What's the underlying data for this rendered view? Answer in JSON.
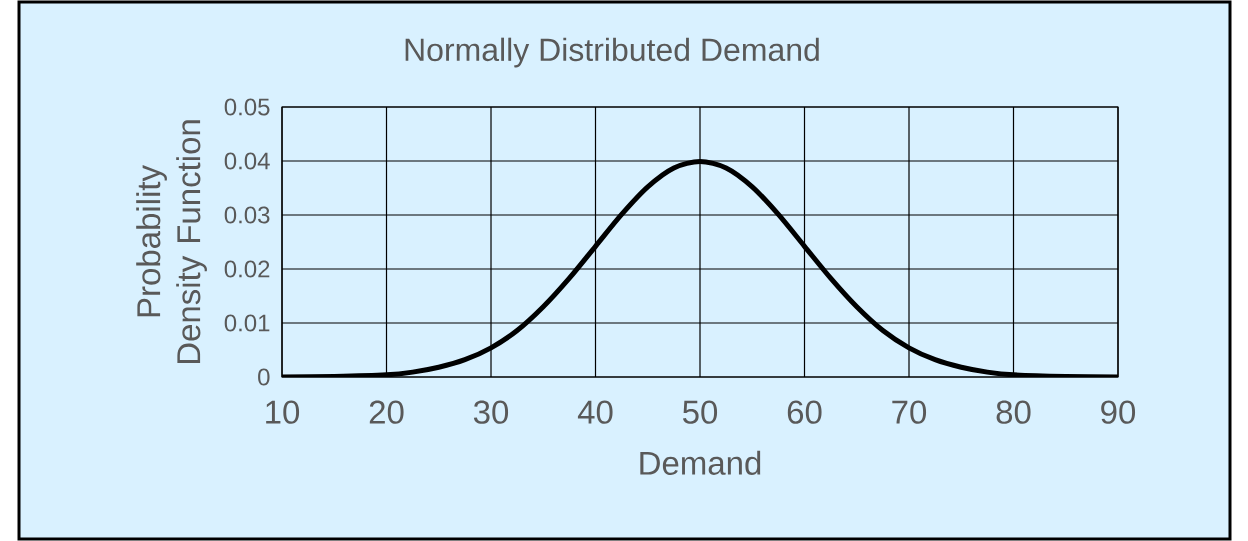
{
  "chart_data": {
    "type": "line",
    "title": "Normally Distributed Demand",
    "xlabel": "Demand",
    "ylabel": "Probability Density Function",
    "x": [
      10,
      15,
      20,
      22.5,
      25,
      27.5,
      30,
      32.5,
      35,
      37.5,
      40,
      42.5,
      45,
      47.5,
      50,
      52.5,
      55,
      57.5,
      60,
      62.5,
      65,
      67.5,
      70,
      72.5,
      75,
      77.5,
      80,
      85,
      90
    ],
    "series": [
      {
        "color": "#000000",
        "values": [
          0,
          0.0001,
          0.0004,
          0.0009,
          0.0018,
          0.0032,
          0.0054,
          0.0086,
          0.013,
          0.0183,
          0.0242,
          0.0301,
          0.0352,
          0.0387,
          0.0399,
          0.0387,
          0.0352,
          0.0301,
          0.0242,
          0.0183,
          0.013,
          0.0086,
          0.0054,
          0.0032,
          0.0018,
          0.0009,
          0.0004,
          0.0001,
          0
        ]
      }
    ],
    "xlim": [
      10,
      90
    ],
    "ylim": [
      0,
      0.05
    ],
    "xticks": [
      10,
      20,
      30,
      40,
      50,
      60,
      70,
      80,
      90
    ],
    "yticks": [
      0,
      0.01,
      0.02,
      0.03,
      0.04,
      0.05
    ],
    "grid": true,
    "marker": "none",
    "line_style": "solid"
  }
}
